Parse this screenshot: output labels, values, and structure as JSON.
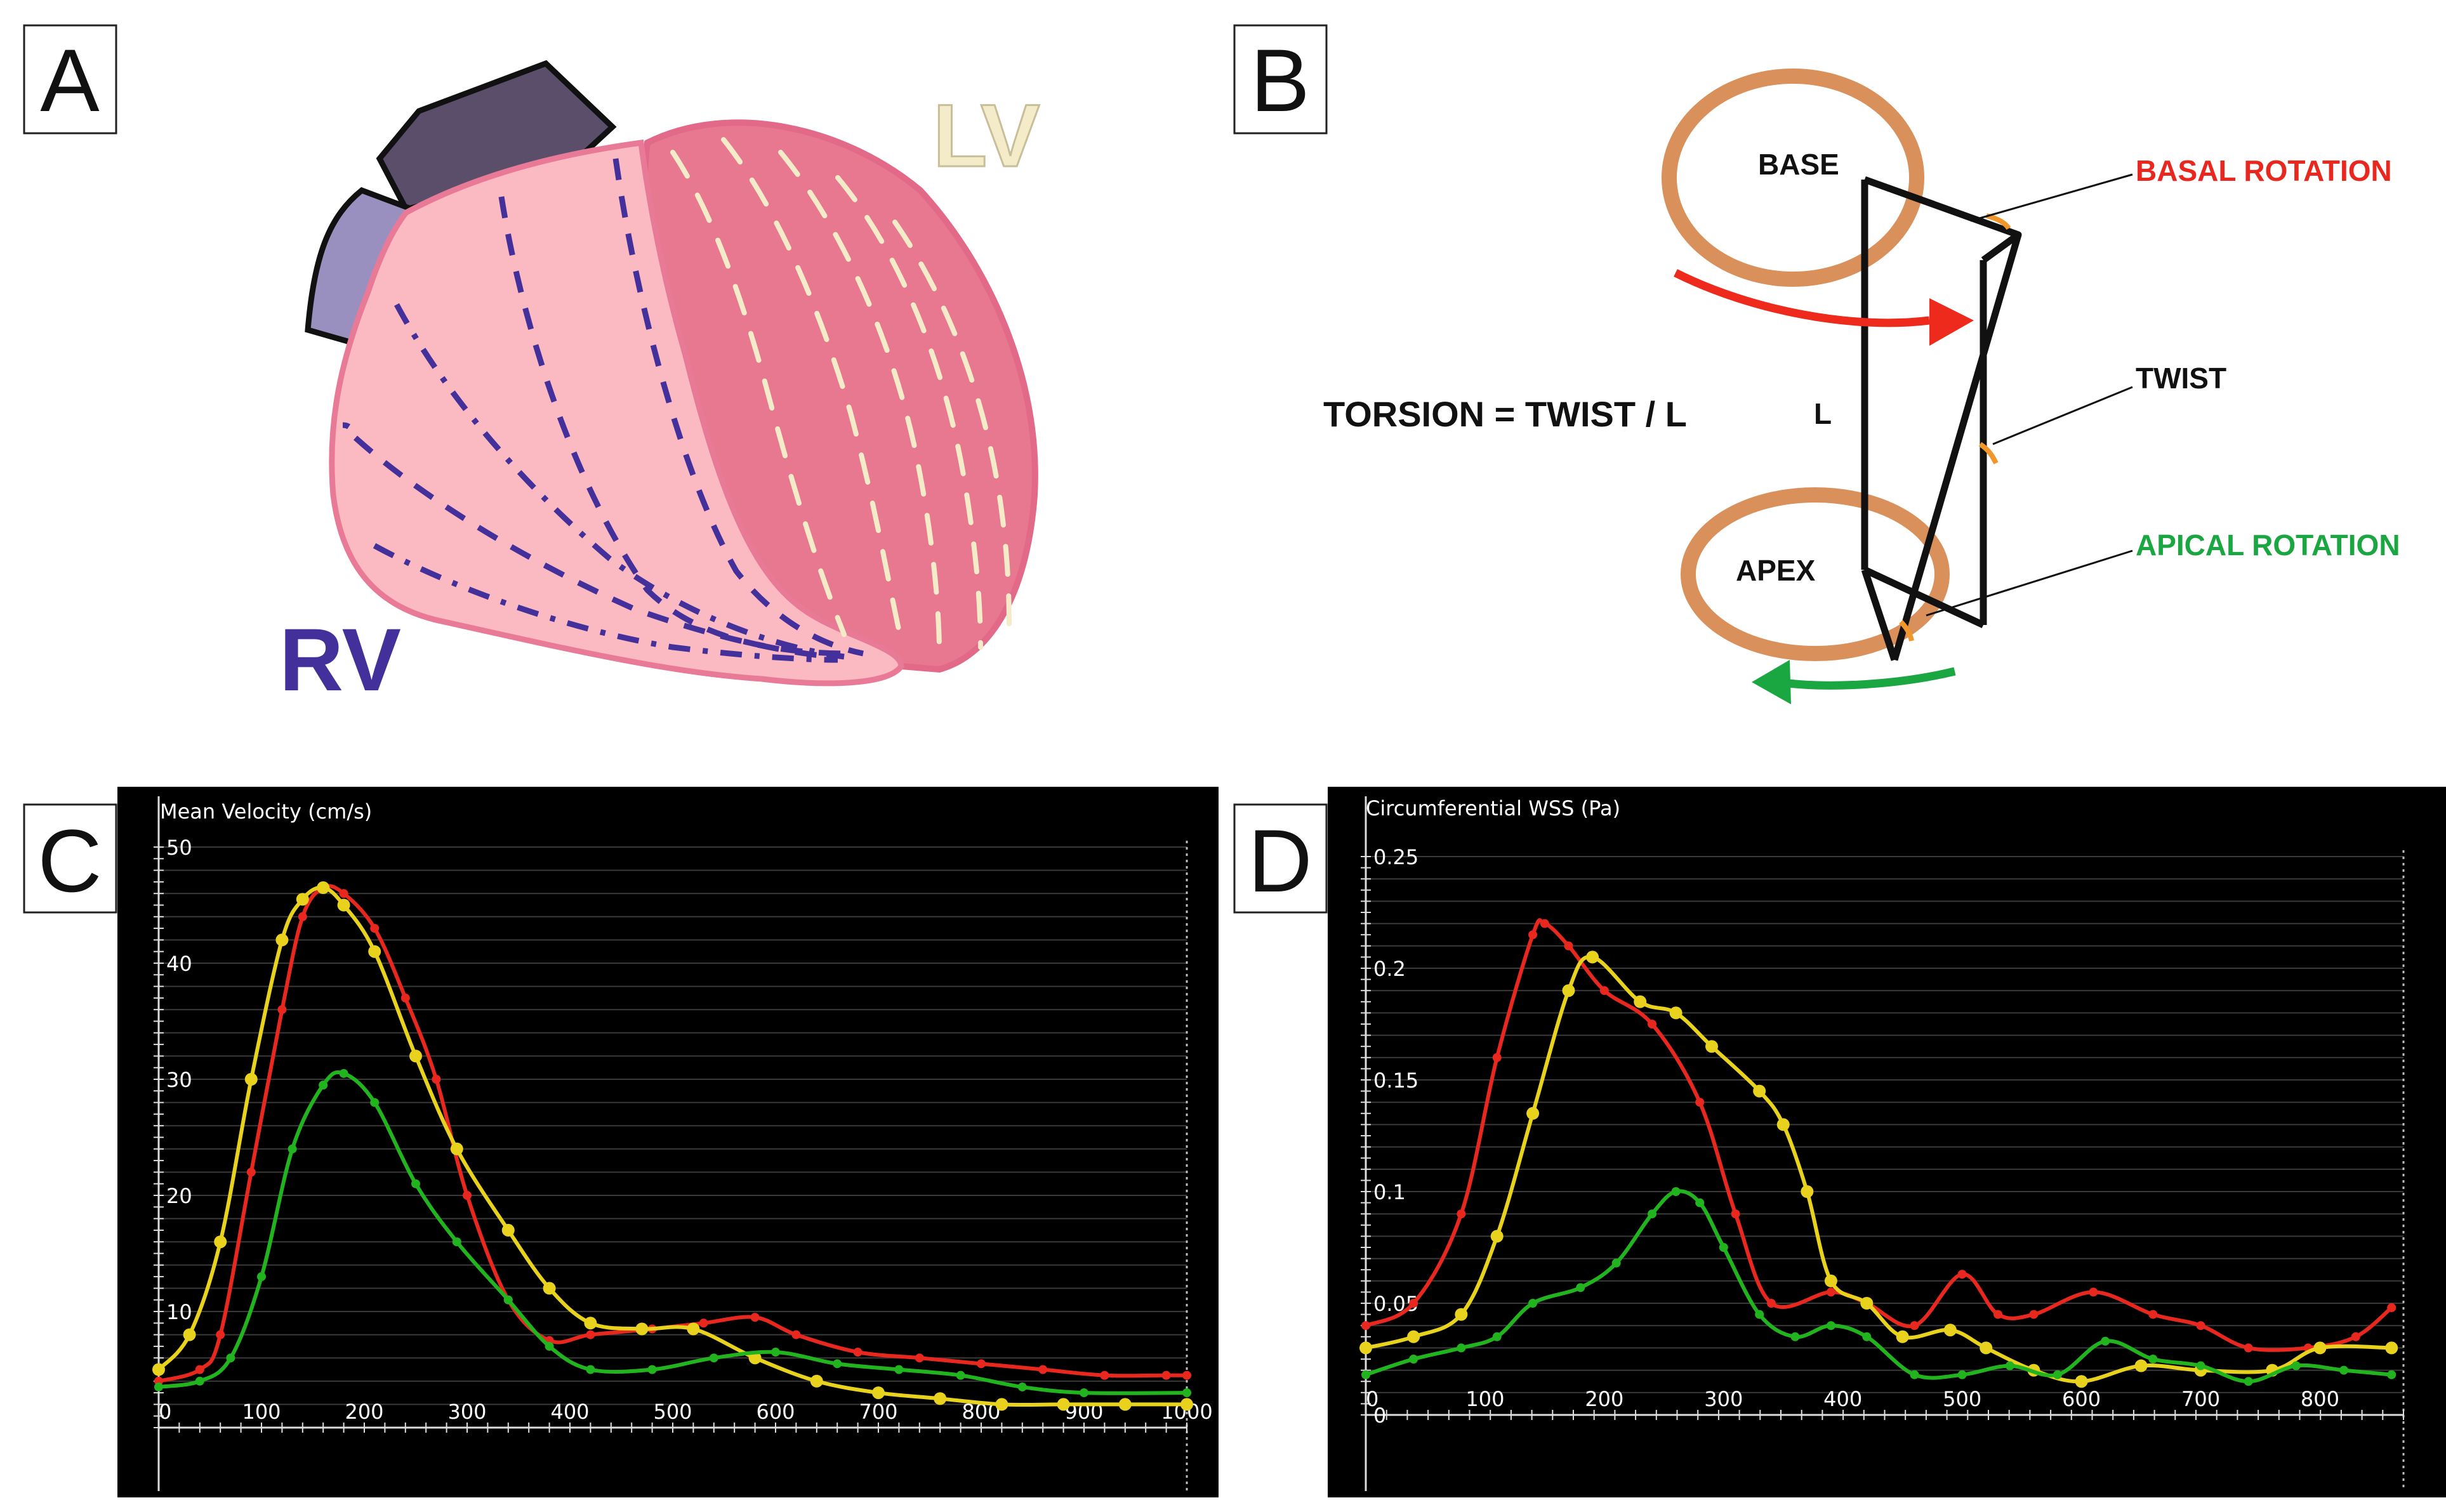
{
  "panels": {
    "a": {
      "label": "A",
      "lv_label": "LV",
      "rv_label": "RV"
    },
    "b": {
      "label": "B",
      "base": "BASE",
      "apex": "APEX",
      "basal_rotation": "BASAL ROTATION",
      "twist": "TWIST",
      "apical_rotation": "APICAL ROTATION",
      "torsion_formula": "TORSION = TWIST / L",
      "length_label": "L"
    },
    "c": {
      "label": "C"
    },
    "d": {
      "label": "D"
    }
  },
  "colors": {
    "red": "#e8281e",
    "yellow": "#e8d21e",
    "green": "#22b41e",
    "orange_ring": "#d9905a",
    "rv_purple": "#44309a",
    "lv_cream": "#f4ecc8",
    "rv_fill": "#fbb9c2",
    "lv_fill": "#e87890",
    "green_arrow": "#1aa640",
    "red_arrow": "#ee2a1c"
  },
  "chart_data": [
    {
      "type": "line",
      "panel": "C",
      "ylabel": "Mean Velocity (cm/s)",
      "xlim": [
        0,
        1000
      ],
      "ylim": [
        0,
        50
      ],
      "x_ticks": [
        "0",
        "100",
        "200",
        "300",
        "400",
        "500",
        "600",
        "700",
        "800",
        "900",
        "1000"
      ],
      "y_ticks": [
        "10",
        "20",
        "30",
        "40",
        "50"
      ],
      "series": [
        {
          "name": "red",
          "color": "#e8281e",
          "x": [
            0,
            40,
            60,
            90,
            120,
            140,
            160,
            180,
            210,
            240,
            270,
            300,
            340,
            380,
            420,
            480,
            530,
            580,
            620,
            680,
            740,
            800,
            860,
            920,
            980,
            1000
          ],
          "y": [
            4,
            5,
            8,
            22,
            36,
            44,
            46.5,
            46,
            43,
            37,
            30,
            20,
            11,
            7.5,
            8,
            8.5,
            9,
            9.5,
            8,
            6.5,
            6,
            5.5,
            5,
            4.5,
            4.5,
            4.5
          ]
        },
        {
          "name": "yellow",
          "color": "#e8d21e",
          "x": [
            0,
            30,
            60,
            90,
            120,
            140,
            160,
            180,
            210,
            250,
            290,
            340,
            380,
            420,
            470,
            520,
            580,
            640,
            700,
            760,
            820,
            880,
            940,
            1000
          ],
          "y": [
            5,
            8,
            16,
            30,
            42,
            45.5,
            46.5,
            45,
            41,
            32,
            24,
            17,
            12,
            9,
            8.5,
            8.5,
            6,
            4,
            3,
            2.5,
            2,
            2,
            2,
            2
          ]
        },
        {
          "name": "green",
          "color": "#22b41e",
          "x": [
            0,
            40,
            70,
            100,
            130,
            160,
            180,
            210,
            250,
            290,
            340,
            380,
            420,
            480,
            540,
            600,
            660,
            720,
            780,
            840,
            900,
            1000
          ],
          "y": [
            3.5,
            4,
            6,
            13,
            24,
            29.5,
            30.5,
            28,
            21,
            16,
            11,
            7,
            5,
            5,
            6,
            6.5,
            5.5,
            5,
            4.5,
            3.5,
            3,
            3
          ]
        }
      ]
    },
    {
      "type": "line",
      "panel": "D",
      "ylabel": "Circumferential WSS (Pa)",
      "xlim": [
        0,
        870
      ],
      "ylim": [
        0,
        0.25
      ],
      "x_ticks": [
        "0",
        "100",
        "200",
        "300",
        "400",
        "500",
        "600",
        "700",
        "800"
      ],
      "y_ticks": [
        "0",
        "0.05",
        "0.1",
        "0.15",
        "0.2",
        "0.25"
      ],
      "series": [
        {
          "name": "red",
          "color": "#e8281e",
          "x": [
            0,
            40,
            80,
            110,
            140,
            150,
            170,
            200,
            240,
            280,
            310,
            340,
            390,
            420,
            460,
            500,
            530,
            560,
            610,
            660,
            700,
            740,
            790,
            830,
            860
          ],
          "y": [
            0.04,
            0.05,
            0.09,
            0.16,
            0.215,
            0.22,
            0.21,
            0.19,
            0.175,
            0.14,
            0.09,
            0.05,
            0.055,
            0.05,
            0.04,
            0.063,
            0.045,
            0.045,
            0.055,
            0.045,
            0.04,
            0.03,
            0.03,
            0.035,
            0.048
          ]
        },
        {
          "name": "yellow",
          "color": "#e8d21e",
          "x": [
            0,
            40,
            80,
            110,
            140,
            170,
            190,
            230,
            260,
            290,
            330,
            350,
            370,
            390,
            420,
            450,
            490,
            520,
            560,
            600,
            650,
            700,
            760,
            800,
            860
          ],
          "y": [
            0.03,
            0.035,
            0.045,
            0.08,
            0.135,
            0.19,
            0.205,
            0.185,
            0.18,
            0.165,
            0.145,
            0.13,
            0.1,
            0.06,
            0.05,
            0.035,
            0.038,
            0.03,
            0.02,
            0.015,
            0.022,
            0.02,
            0.02,
            0.03,
            0.03
          ]
        },
        {
          "name": "green",
          "color": "#22b41e",
          "x": [
            0,
            40,
            80,
            110,
            140,
            180,
            210,
            240,
            260,
            280,
            300,
            330,
            360,
            390,
            420,
            460,
            500,
            540,
            580,
            620,
            660,
            700,
            740,
            780,
            820,
            860
          ],
          "y": [
            0.018,
            0.025,
            0.03,
            0.035,
            0.05,
            0.057,
            0.068,
            0.09,
            0.1,
            0.095,
            0.075,
            0.045,
            0.035,
            0.04,
            0.035,
            0.018,
            0.018,
            0.022,
            0.018,
            0.033,
            0.025,
            0.022,
            0.015,
            0.022,
            0.02,
            0.018
          ]
        }
      ]
    }
  ]
}
